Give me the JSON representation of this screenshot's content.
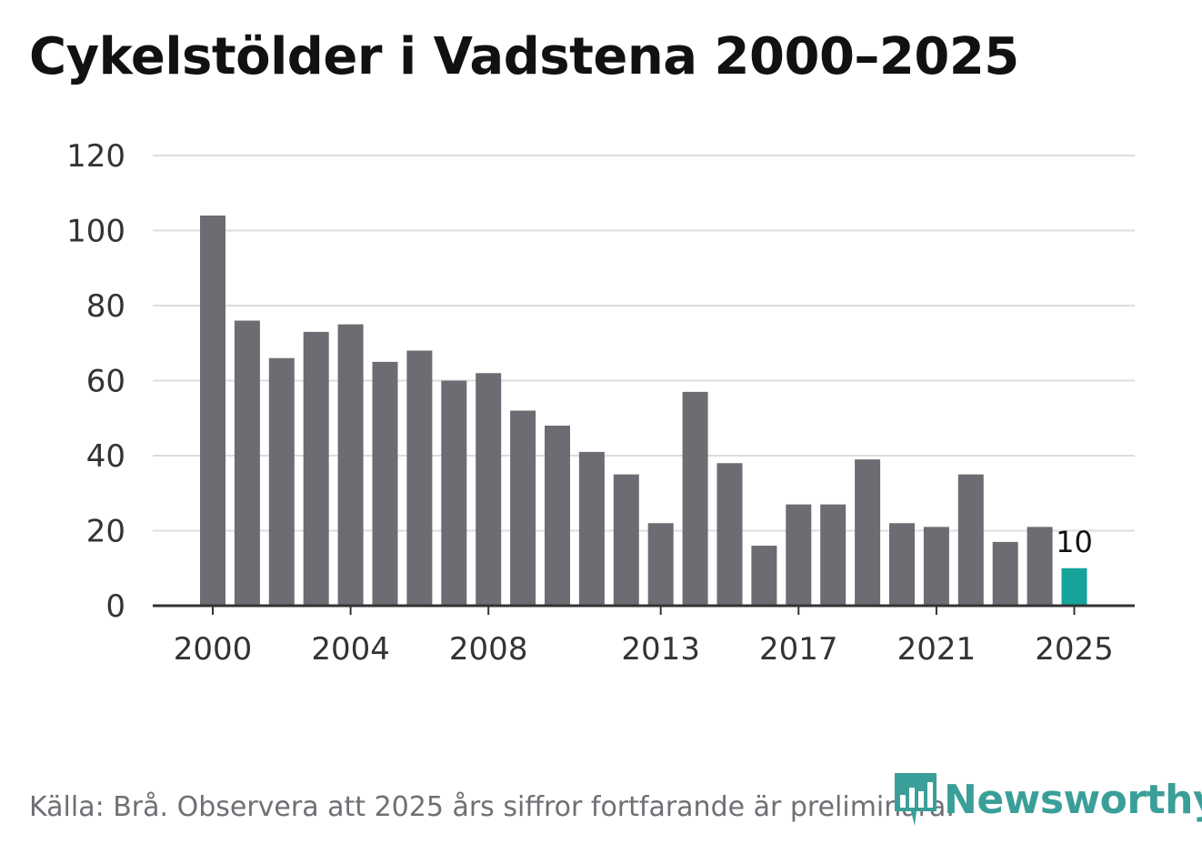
{
  "chart_data": {
    "type": "bar",
    "title": "Cykelstölder i Vadstena 2000–2025",
    "categories": [
      "2000",
      "2001",
      "2002",
      "2003",
      "2004",
      "2005",
      "2006",
      "2007",
      "2008",
      "2009",
      "2010",
      "2011",
      "2012",
      "2013",
      "2014",
      "2015",
      "2016",
      "2017",
      "2018",
      "2019",
      "2020",
      "2021",
      "2022",
      "2023",
      "2024",
      "2025"
    ],
    "values": [
      104,
      76,
      66,
      73,
      75,
      65,
      68,
      60,
      62,
      52,
      48,
      41,
      35,
      22,
      57,
      38,
      16,
      27,
      27,
      39,
      22,
      21,
      35,
      17,
      21,
      10
    ],
    "xtick_labels": [
      "2000",
      "2004",
      "2008",
      "2013",
      "2017",
      "2021",
      "2025"
    ],
    "yticks": [
      0,
      20,
      40,
      60,
      80,
      100,
      120
    ],
    "ylim": [
      0,
      120
    ],
    "xlabel": "",
    "ylabel": "",
    "highlight": {
      "category": "2025",
      "label": "10"
    },
    "colors": {
      "bar": "#6d6c72",
      "highlight": "#15a39a",
      "grid": "#dddddd",
      "axis": "#333333",
      "tick_text": "#333333"
    }
  },
  "footer": {
    "source": "Källa: Brå. Observera att 2025 års siffror fortfarande är preliminära.",
    "logo_text": "Newsworthy",
    "logo_color": "#3a9f98"
  }
}
